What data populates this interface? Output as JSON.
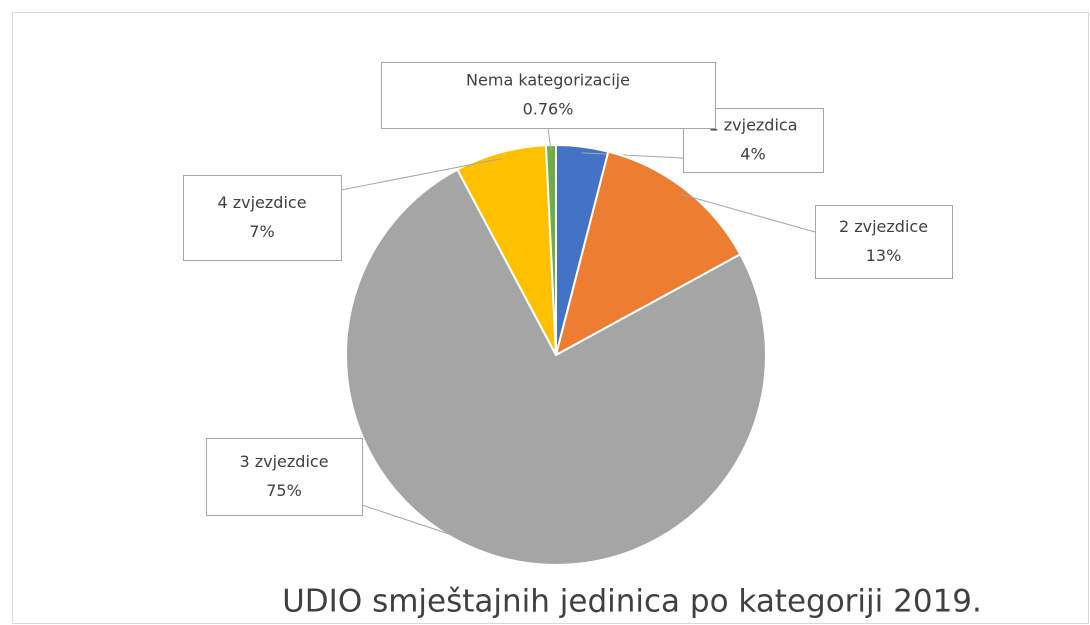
{
  "chart_data": {
    "type": "pie",
    "title": "UDIO smještajnih jedinica po kategoriji 2019.",
    "categories": [
      "1 zvjezdica",
      "2 zvjezdice",
      "3 zvjezdice",
      "4 zvjezdice",
      "Nema kategorizacije"
    ],
    "values": [
      4,
      13,
      75,
      7,
      0.76
    ],
    "value_labels": [
      "4%",
      "13%",
      "75%",
      "7%",
      "0.76%"
    ],
    "colors": [
      "#4472c4",
      "#ed7d31",
      "#a5a5a5",
      "#ffc000",
      "#70ad47"
    ]
  }
}
